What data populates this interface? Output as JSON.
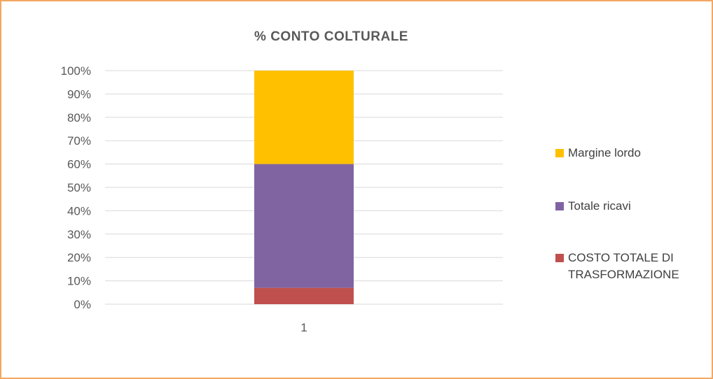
{
  "chart_data": {
    "type": "bar",
    "stacked": true,
    "normalized": true,
    "title": "% CONTO COLTURALE",
    "categories": [
      "1"
    ],
    "ylim": [
      0,
      100
    ],
    "y_ticks": [
      "0%",
      "10%",
      "20%",
      "30%",
      "40%",
      "50%",
      "60%",
      "70%",
      "80%",
      "90%",
      "100%"
    ],
    "grid": true,
    "legend_position": "right",
    "series": [
      {
        "name": "COSTO TOTALE DI TRASFORMAZIONE",
        "values": [
          7
        ],
        "color": "#c0504d"
      },
      {
        "name": "Totale ricavi",
        "values": [
          53
        ],
        "color": "#8064a2"
      },
      {
        "name": "Margine lordo",
        "values": [
          40
        ],
        "color": "#ffc000"
      }
    ]
  }
}
